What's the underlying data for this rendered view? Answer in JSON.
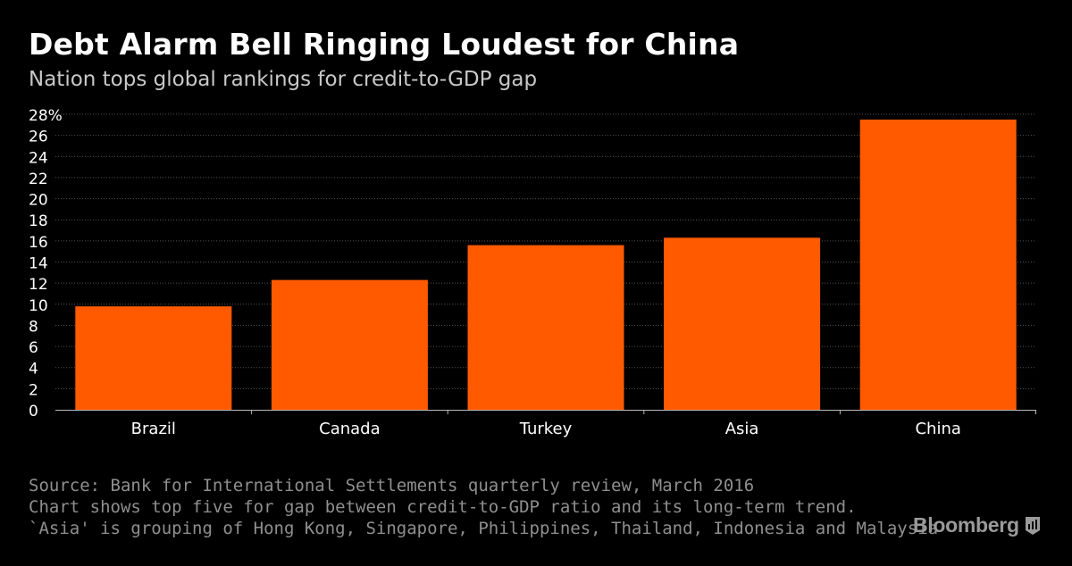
{
  "header": {
    "title": "Debt Alarm Bell Ringing Loudest for China",
    "subtitle": "Nation tops global rankings for credit-to-GDP gap"
  },
  "chart_data": {
    "type": "bar",
    "categories": [
      "Brazil",
      "Canada",
      "Turkey",
      "Asia",
      "China"
    ],
    "values": [
      9.8,
      12.3,
      15.6,
      16.3,
      27.5
    ],
    "ylim": [
      0,
      28
    ],
    "yticks": [
      0,
      2,
      4,
      6,
      8,
      10,
      12,
      14,
      16,
      18,
      20,
      22,
      24,
      26,
      28
    ],
    "ytick_labels": [
      "0",
      "2",
      "4",
      "6",
      "8",
      "10",
      "12",
      "14",
      "16",
      "18",
      "20",
      "22",
      "24",
      "26",
      "28%"
    ],
    "grid": true,
    "bar_color": "#ff5a00",
    "grid_color": "#555555"
  },
  "footer": {
    "source": "Source: Bank for International Settlements quarterly review, March 2016",
    "note1": "Chart shows top five for gap between credit-to-GDP ratio and its long-term trend.",
    "note2": "`Asia' is grouping of Hong Kong, Singapore, Philippines, Thailand, Indonesia and Malaysia",
    "brand": "Bloomberg",
    "brand_icon": "bloomberg-chart-icon"
  }
}
